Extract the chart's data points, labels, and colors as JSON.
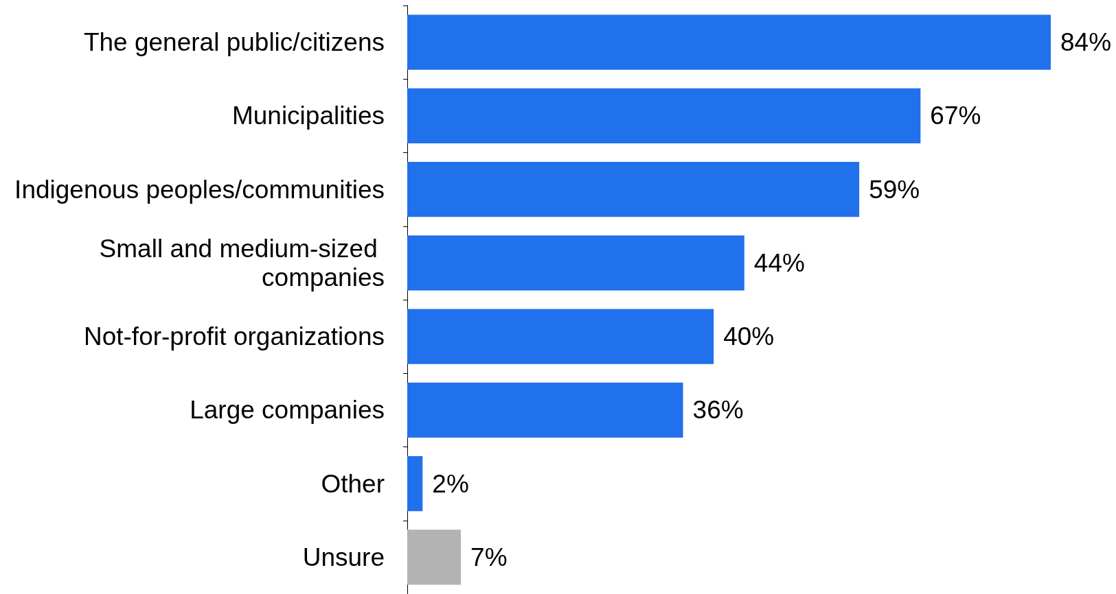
{
  "chart_data": {
    "type": "bar",
    "orientation": "horizontal",
    "categories": [
      "The general public/citizens",
      "Municipalities",
      "Indigenous peoples/communities",
      "Small and medium-sized companies",
      "Not-for-profit organizations",
      "Large companies",
      "Other",
      "Unsure"
    ],
    "values": [
      84,
      67,
      59,
      44,
      40,
      36,
      2,
      7
    ],
    "colors": [
      "#2271ec",
      "#2271ec",
      "#2271ec",
      "#2271ec",
      "#2271ec",
      "#2271ec",
      "#2271ec",
      "#b3b3b3"
    ],
    "value_labels": [
      "84%",
      "67%",
      "59%",
      "44%",
      "40%",
      "36%",
      "2%",
      "7%"
    ]
  }
}
